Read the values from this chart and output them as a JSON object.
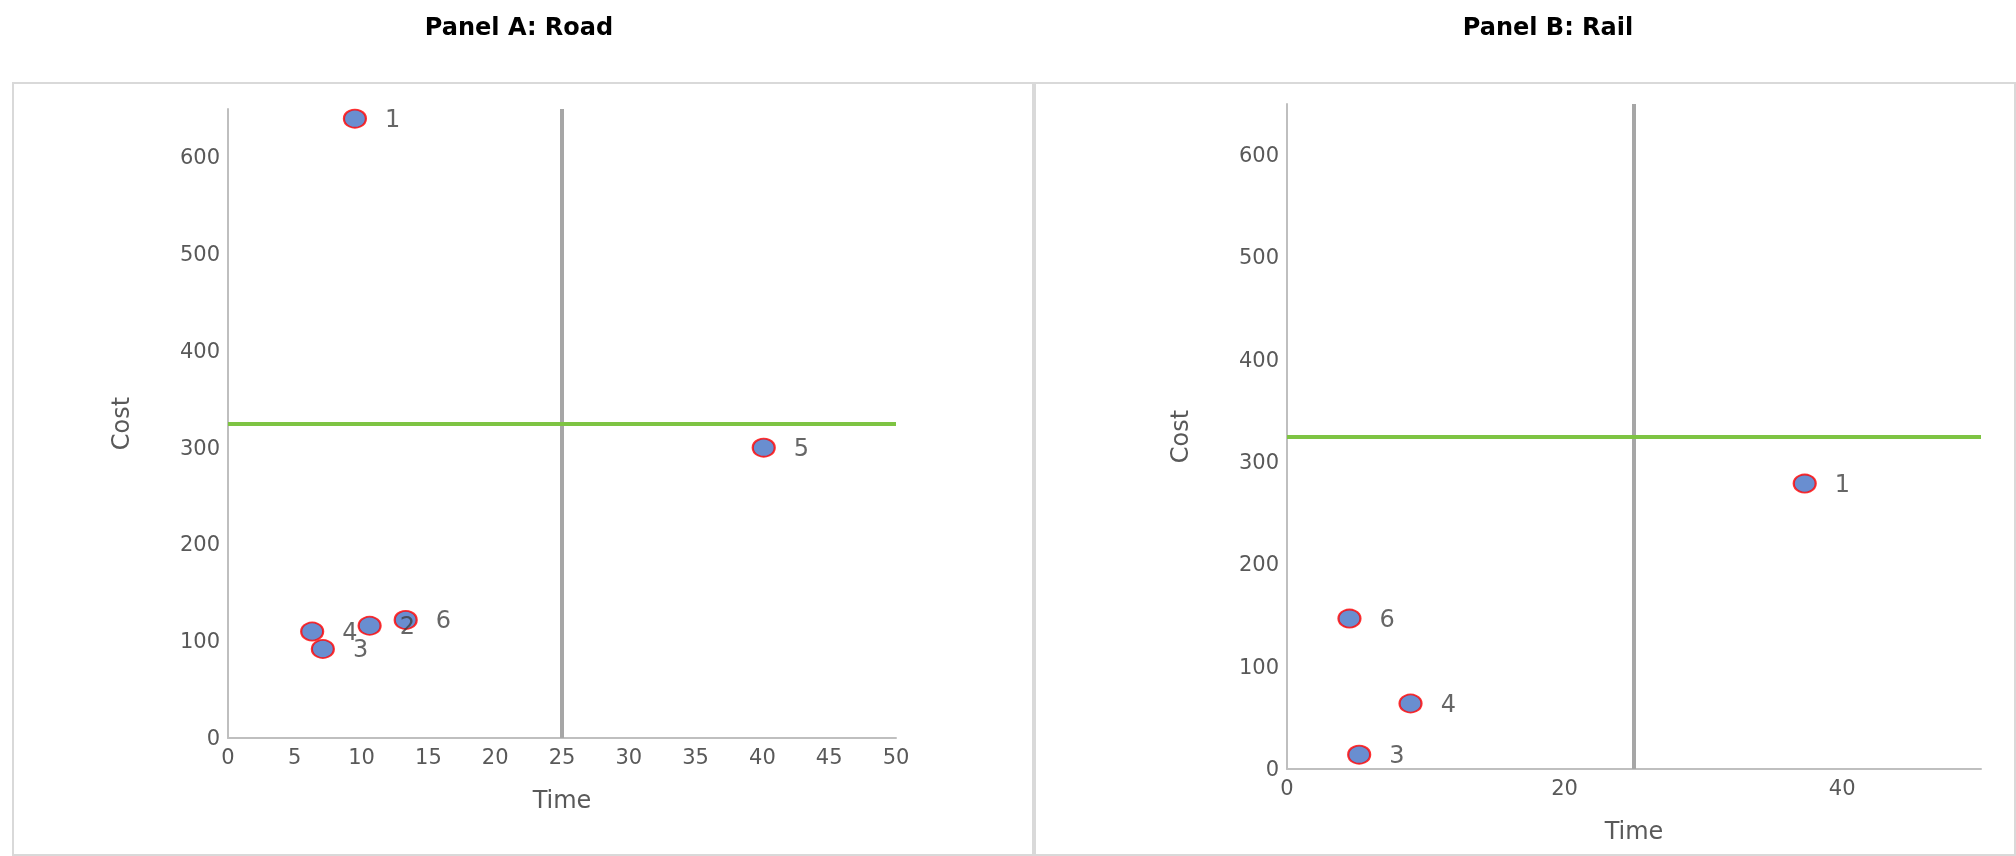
{
  "chart_data": [
    {
      "type": "scatter",
      "title": "Panel A: Road",
      "xlabel": "Time",
      "ylabel": "Cost",
      "series": [
        {
          "name": "1",
          "color": "#4472c4",
          "x": [
            9.5
          ],
          "values": [
            640
          ]
        },
        {
          "name": "2",
          "color": "#4472c4",
          "x": [
            10.6
          ],
          "values": [
            116
          ]
        },
        {
          "name": "3",
          "color": "#4472c4",
          "x": [
            7.1
          ],
          "values": [
            92
          ]
        },
        {
          "name": "4",
          "color": "#4472c4",
          "x": [
            6.3
          ],
          "values": [
            110
          ]
        },
        {
          "name": "5",
          "color": "#4472c4",
          "x": [
            40.1
          ],
          "values": [
            300
          ]
        },
        {
          "name": "6",
          "color": "#4472c4",
          "x": [
            13.3
          ],
          "values": [
            122
          ]
        }
      ],
      "xlim": [
        0,
        50
      ],
      "xticks": [
        0,
        5,
        10,
        15,
        20,
        25,
        30,
        35,
        40,
        45,
        50
      ],
      "ylim": [
        0,
        650
      ],
      "yticks": [
        0,
        100,
        200,
        300,
        400,
        500,
        600
      ],
      "ref_lines": [
        {
          "axis": "x",
          "value": 25,
          "color": "#a6a6a6"
        },
        {
          "axis": "y",
          "value": 325,
          "color": "#7ec443"
        }
      ],
      "marker": "circle",
      "grid": false
    },
    {
      "type": "scatter",
      "title": "Panel B: Rail",
      "xlabel": "Time",
      "ylabel": "Cost",
      "series": [
        {
          "name": "1",
          "color": "#4472c4",
          "x": [
            37.3
          ],
          "values": [
            279
          ]
        },
        {
          "name": "3",
          "color": "#4472c4",
          "x": [
            5.2
          ],
          "values": [
            14
          ]
        },
        {
          "name": "4",
          "color": "#4472c4",
          "x": [
            8.9
          ],
          "values": [
            64
          ]
        },
        {
          "name": "6",
          "color": "#4472c4",
          "x": [
            4.5
          ],
          "values": [
            147
          ]
        }
      ],
      "xlim": [
        0,
        50
      ],
      "xticks": [
        0,
        20,
        40
      ],
      "ylim": [
        0,
        650
      ],
      "yticks": [
        0,
        100,
        200,
        300,
        400,
        500,
        600
      ],
      "ref_lines": [
        {
          "axis": "x",
          "value": 25,
          "color": "#a6a6a6"
        },
        {
          "axis": "y",
          "value": 325,
          "color": "#7ec443"
        }
      ],
      "marker": "circle",
      "grid": false
    }
  ]
}
